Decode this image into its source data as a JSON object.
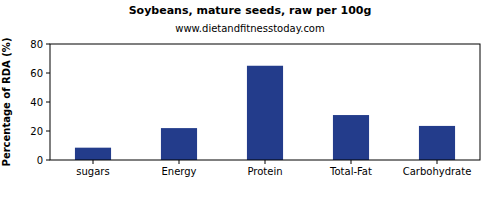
{
  "chart_data": {
    "type": "bar",
    "title": "Soybeans, mature seeds, raw per 100g",
    "subtitle": "www.dietandfitnesstoday.com",
    "y_label": "Percentage of RDA (%)",
    "categories": [
      "sugars",
      "Energy",
      "Protein",
      "Total-Fat",
      "Carbohydrate"
    ],
    "values": [
      8.5,
      22,
      65,
      31,
      23.5
    ],
    "color": "#233c8b",
    "ylim": [
      0,
      80
    ],
    "yticks": [
      0,
      20,
      40,
      60,
      80
    ],
    "grid": false
  }
}
